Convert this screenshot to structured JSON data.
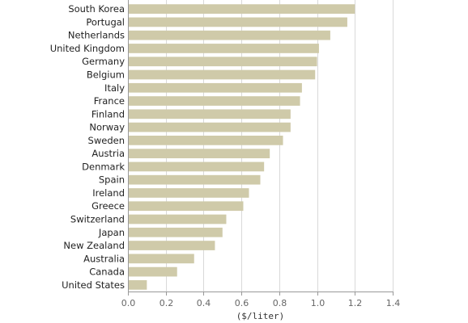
{
  "chart_data": {
    "type": "bar",
    "orientation": "horizontal",
    "categories": [
      "South Korea",
      "Portugal",
      "Netherlands",
      "United Kingdom",
      "Germany",
      "Belgium",
      "Italy",
      "France",
      "Finland",
      "Norway",
      "Sweden",
      "Austria",
      "Denmark",
      "Spain",
      "Ireland",
      "Greece",
      "Switzerland",
      "Japan",
      "New Zealand",
      "Australia",
      "Canada",
      "United States"
    ],
    "values": [
      1.2,
      1.16,
      1.07,
      1.01,
      1.0,
      0.99,
      0.92,
      0.91,
      0.86,
      0.86,
      0.82,
      0.75,
      0.72,
      0.7,
      0.64,
      0.61,
      0.52,
      0.5,
      0.46,
      0.35,
      0.26,
      0.1
    ],
    "xlim": [
      0,
      1.4
    ],
    "xticks": [
      0.0,
      0.2,
      0.4,
      0.6,
      0.8,
      1.0,
      1.2,
      1.4
    ],
    "xtick_labels": [
      "0.0",
      "0.2",
      "0.4",
      "0.6",
      "0.8",
      "1.0",
      "1.2",
      "1.4"
    ],
    "xlabel": "($/liter)",
    "title": "",
    "grid": true,
    "bar_color": "#cfcaa9",
    "grid_color": "#d9d9d9",
    "axis_color": "#999999"
  }
}
